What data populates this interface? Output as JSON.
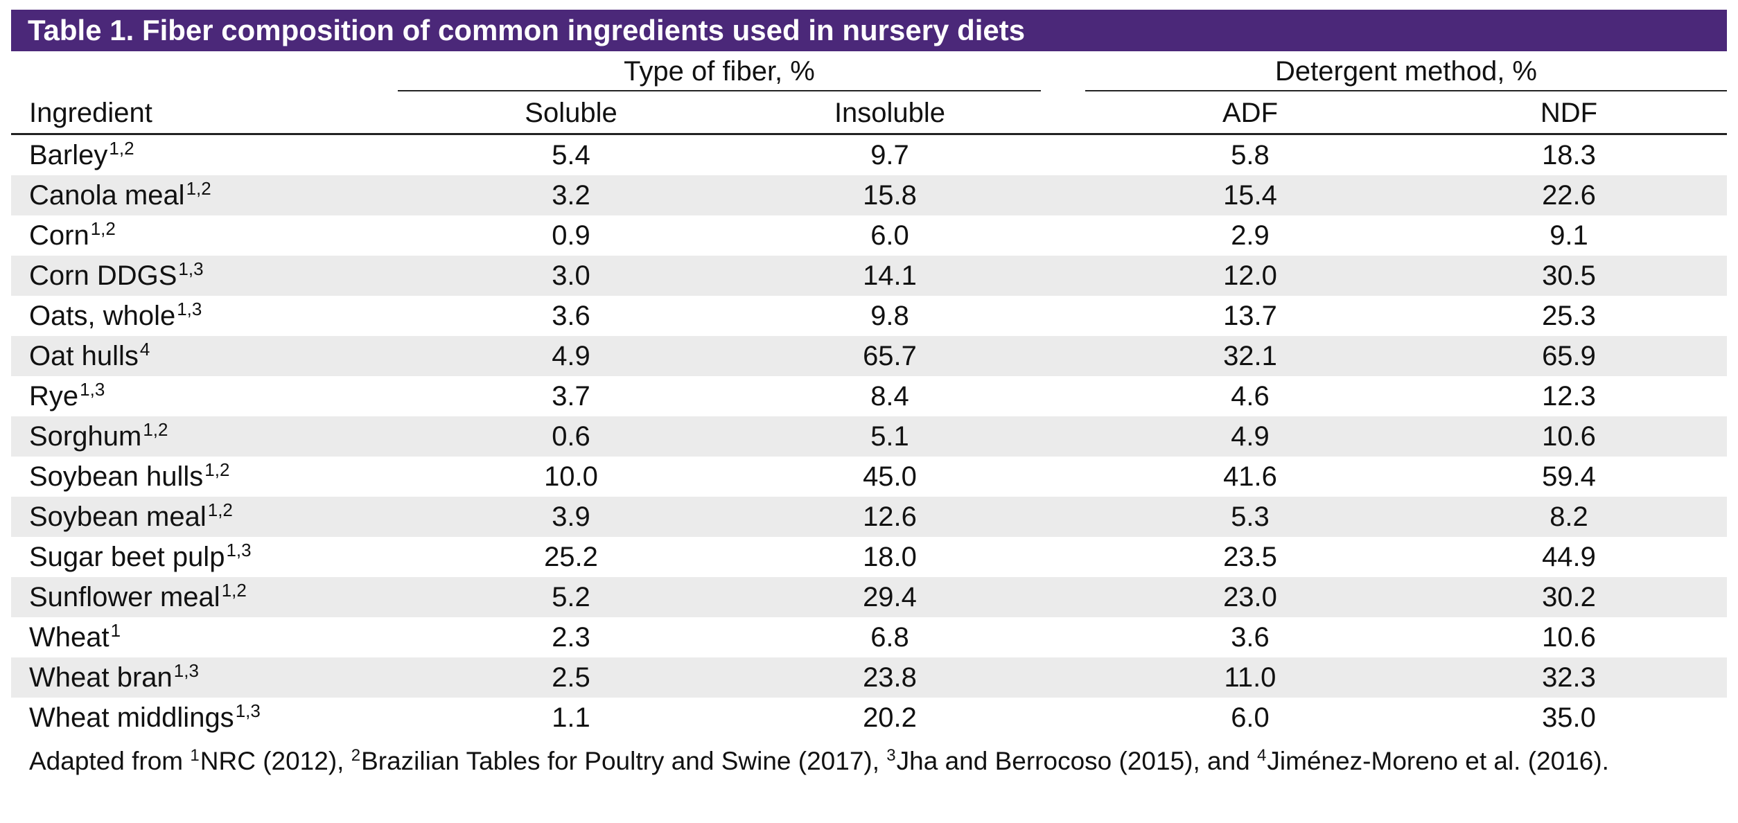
{
  "title": "Table 1. Fiber composition of common ingredients used in nursery diets",
  "group_headers": {
    "type_of_fiber": "Type of fiber, %",
    "detergent_method": "Detergent method, %"
  },
  "columns": {
    "ingredient": "Ingredient",
    "soluble": "Soluble",
    "insoluble": "Insoluble",
    "adf": "ADF",
    "ndf": "NDF"
  },
  "rows": [
    {
      "name": "Barley",
      "sup": "1,2",
      "soluble": "5.4",
      "insoluble": "9.7",
      "adf": "5.8",
      "ndf": "18.3"
    },
    {
      "name": "Canola meal",
      "sup": "1,2",
      "soluble": "3.2",
      "insoluble": "15.8",
      "adf": "15.4",
      "ndf": "22.6"
    },
    {
      "name": "Corn",
      "sup": "1,2",
      "soluble": "0.9",
      "insoluble": "6.0",
      "adf": "2.9",
      "ndf": "9.1"
    },
    {
      "name": "Corn DDGS",
      "sup": "1,3",
      "soluble": "3.0",
      "insoluble": "14.1",
      "adf": "12.0",
      "ndf": "30.5"
    },
    {
      "name": "Oats, whole",
      "sup": "1,3",
      "soluble": "3.6",
      "insoluble": "9.8",
      "adf": "13.7",
      "ndf": "25.3"
    },
    {
      "name": "Oat hulls",
      "sup": "4",
      "soluble": "4.9",
      "insoluble": "65.7",
      "adf": "32.1",
      "ndf": "65.9"
    },
    {
      "name": "Rye",
      "sup": "1,3",
      "soluble": "3.7",
      "insoluble": "8.4",
      "adf": "4.6",
      "ndf": "12.3"
    },
    {
      "name": "Sorghum",
      "sup": "1,2",
      "soluble": "0.6",
      "insoluble": "5.1",
      "adf": "4.9",
      "ndf": "10.6"
    },
    {
      "name": "Soybean hulls",
      "sup": "1,2",
      "soluble": "10.0",
      "insoluble": "45.0",
      "adf": "41.6",
      "ndf": "59.4"
    },
    {
      "name": "Soybean meal",
      "sup": "1,2",
      "soluble": "3.9",
      "insoluble": "12.6",
      "adf": "5.3",
      "ndf": "8.2"
    },
    {
      "name": "Sugar beet pulp",
      "sup": "1,3",
      "soluble": "25.2",
      "insoluble": "18.0",
      "adf": "23.5",
      "ndf": "44.9"
    },
    {
      "name": "Sunflower meal",
      "sup": "1,2",
      "soluble": "5.2",
      "insoluble": "29.4",
      "adf": "23.0",
      "ndf": "30.2"
    },
    {
      "name": "Wheat",
      "sup": "1",
      "soluble": "2.3",
      "insoluble": "6.8",
      "adf": "3.6",
      "ndf": "10.6"
    },
    {
      "name": "Wheat bran",
      "sup": "1,3",
      "soluble": "2.5",
      "insoluble": "23.8",
      "adf": "11.0",
      "ndf": "32.3"
    },
    {
      "name": "Wheat middlings",
      "sup": "1,3",
      "soluble": "1.1",
      "insoluble": "20.2",
      "adf": "6.0",
      "ndf": "35.0"
    }
  ],
  "footnote": {
    "prefix": "Adapted from ",
    "refs": [
      {
        "sup": "1",
        "text": "NRC (2012), "
      },
      {
        "sup": "2",
        "text": "Brazilian Tables for Poultry and Swine (2017), "
      },
      {
        "sup": "3",
        "text": "Jha and Berrocoso (2015), and "
      },
      {
        "sup": "4",
        "text": "Jiménez-Moreno et al. (2016)."
      }
    ]
  },
  "colors": {
    "title_background": "#4b2879",
    "title_text": "#ffffff",
    "shaded_row": "#ebebeb"
  }
}
